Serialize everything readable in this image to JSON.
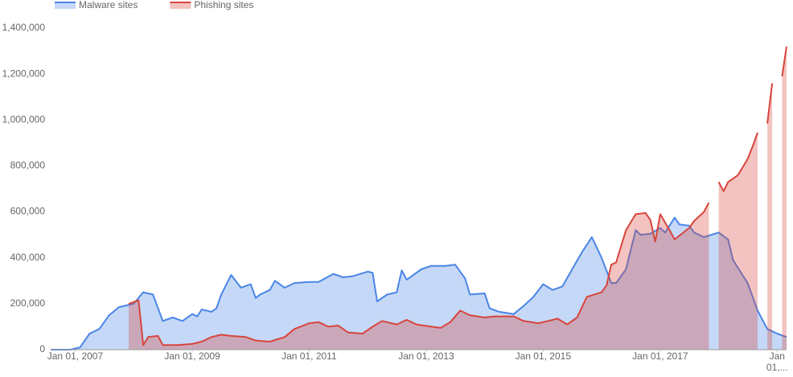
{
  "chart_data": {
    "type": "area",
    "legend": "top-left",
    "xlim": [
      "2006-08-01",
      "2019-03-01"
    ],
    "xticks": [
      {
        "value": "2007-01-01",
        "label": "Jan 01, 2007"
      },
      {
        "value": "2009-01-01",
        "label": "Jan 01, 2009"
      },
      {
        "value": "2011-01-01",
        "label": "Jan 01, 2011"
      },
      {
        "value": "2013-01-01",
        "label": "Jan 01, 2013"
      },
      {
        "value": "2015-01-01",
        "label": "Jan 01, 2015"
      },
      {
        "value": "2017-01-01",
        "label": "Jan 01, 2017"
      },
      {
        "value": "2019-01-01",
        "label": "Jan 01,..."
      }
    ],
    "ylim": [
      0,
      1400000
    ],
    "yticks": [
      0,
      {
        "value": 200000,
        "label": "200,000"
      },
      {
        "value": 400000,
        "label": "400,000"
      },
      {
        "value": 600000,
        "label": "600,000"
      },
      {
        "value": 800000,
        "label": "800,000"
      },
      {
        "value": 1000000,
        "label": "1,000,000"
      },
      {
        "value": 1200000,
        "label": "1,200,000"
      },
      {
        "value": 1400000,
        "label": "1,400,000"
      }
    ],
    "grid": false,
    "series": [
      {
        "name": "Malware sites",
        "color": "#4a85e6",
        "x": [
          "2006-08-01",
          "2006-12-01",
          "2007-02-01",
          "2007-04-01",
          "2007-06-01",
          "2007-08-01",
          "2007-10-01",
          "2008-01-01",
          "2008-03-01",
          "2008-05-01",
          "2008-07-01",
          "2008-09-01",
          "2008-11-01",
          "2009-01-01",
          "2009-02-01",
          "2009-03-01",
          "2009-05-01",
          "2009-06-01",
          "2009-07-01",
          "2009-09-01",
          "2009-11-01",
          "2010-01-01",
          "2010-02-01",
          "2010-03-01",
          "2010-05-01",
          "2010-06-01",
          "2010-08-01",
          "2010-10-01",
          "2011-01-01",
          "2011-03-01",
          "2011-06-01",
          "2011-08-01",
          "2011-10-01",
          "2012-01-01",
          "2012-02-01",
          "2012-03-01",
          "2012-05-01",
          "2012-07-01",
          "2012-08-01",
          "2012-09-01",
          "2012-12-01",
          "2013-02-01",
          "2013-05-01",
          "2013-07-01",
          "2013-09-01",
          "2013-10-01",
          "2014-01-01",
          "2014-02-01",
          "2014-04-01",
          "2014-07-01",
          "2014-09-01",
          "2014-11-01",
          "2015-01-01",
          "2015-03-01",
          "2015-05-01",
          "2015-07-01",
          "2015-09-01",
          "2015-11-01",
          "2016-01-01",
          "2016-03-01",
          "2016-04-01",
          "2016-06-01",
          "2016-08-01",
          "2016-09-01",
          "2016-11-01",
          "2017-01-01",
          "2017-02-01",
          "2017-04-01",
          "2017-05-01",
          "2017-07-01",
          "2017-08-01",
          "2017-10-01",
          "2018-01-01",
          "2018-03-01",
          "2018-04-01",
          "2018-07-01",
          "2018-09-01",
          "2018-11-01",
          "2019-01-01",
          "2019-03-01"
        ],
        "values": [
          0,
          0,
          10000,
          70000,
          90000,
          150000,
          185000,
          200000,
          250000,
          240000,
          125000,
          140000,
          125000,
          155000,
          145000,
          175000,
          165000,
          180000,
          240000,
          325000,
          270000,
          285000,
          225000,
          240000,
          260000,
          300000,
          270000,
          290000,
          295000,
          295000,
          330000,
          315000,
          320000,
          340000,
          335000,
          210000,
          240000,
          250000,
          345000,
          305000,
          350000,
          365000,
          365000,
          370000,
          310000,
          240000,
          245000,
          180000,
          165000,
          155000,
          190000,
          230000,
          285000,
          260000,
          275000,
          350000,
          425000,
          490000,
          400000,
          290000,
          290000,
          350000,
          520000,
          500000,
          505000,
          530000,
          510000,
          575000,
          545000,
          540000,
          510000,
          490000,
          510000,
          480000,
          390000,
          290000,
          170000,
          90000,
          70000,
          55000
        ]
      },
      {
        "name": "Phishing sites",
        "color": "#d8453c",
        "x": [
          "2007-12-01",
          "2008-02-01",
          "2008-03-01",
          "2008-04-01",
          "2008-06-01",
          "2008-07-01",
          "2008-10-01",
          "2009-01-01",
          "2009-03-01",
          "2009-05-01",
          "2009-07-01",
          "2009-09-01",
          "2009-12-01",
          "2010-02-01",
          "2010-05-01",
          "2010-08-01",
          "2010-10-01",
          "2011-01-01",
          "2011-03-01",
          "2011-05-01",
          "2011-07-01",
          "2011-09-01",
          "2011-12-01",
          "2012-02-01",
          "2012-04-01",
          "2012-07-01",
          "2012-09-01",
          "2012-11-01",
          "2013-02-01",
          "2013-04-01",
          "2013-06-01",
          "2013-08-01",
          "2013-10-01",
          "2014-01-01",
          "2014-03-01",
          "2014-07-01",
          "2014-09-01",
          "2014-12-01",
          "2015-02-01",
          "2015-04-01",
          "2015-06-01",
          "2015-08-01",
          "2015-10-01",
          "2016-01-01",
          "2016-02-01",
          "2016-03-01",
          "2016-04-01",
          "2016-06-01",
          "2016-08-01",
          "2016-10-01",
          "2016-11-01",
          "2016-12-01",
          "2017-01-01",
          "2017-03-01",
          "2017-04-01",
          "2017-07-01",
          "2017-08-01",
          "2017-10-01",
          "2017-11-01",
          "2017-12-01",
          "2018-01-01",
          "2018-02-01",
          "2018-03-01",
          "2018-05-01",
          "2018-07-01",
          "2018-08-01",
          "2018-09-01",
          "2018-10-01",
          "2018-11-01",
          "2018-12-01",
          "2019-01-01",
          "2019-02-01",
          "2019-03-01"
        ],
        "values": [
          200000,
          215000,
          20000,
          55000,
          60000,
          20000,
          20000,
          25000,
          35000,
          55000,
          65000,
          60000,
          55000,
          40000,
          35000,
          55000,
          90000,
          115000,
          120000,
          100000,
          105000,
          75000,
          70000,
          100000,
          125000,
          110000,
          130000,
          110000,
          100000,
          95000,
          120000,
          170000,
          150000,
          140000,
          145000,
          145000,
          125000,
          115000,
          125000,
          135000,
          110000,
          140000,
          230000,
          250000,
          280000,
          370000,
          380000,
          520000,
          590000,
          595000,
          565000,
          470000,
          590000,
          520000,
          480000,
          530000,
          560000,
          600000,
          640000,
          null,
          730000,
          690000,
          730000,
          760000,
          830000,
          885000,
          945000,
          null,
          985000,
          1160000,
          null,
          1190000,
          1320000
        ]
      }
    ]
  }
}
